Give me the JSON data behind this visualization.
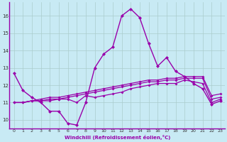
{
  "xlabel": "Windchill (Refroidissement éolien,°C)",
  "x": [
    0,
    1,
    2,
    3,
    4,
    5,
    6,
    7,
    8,
    9,
    10,
    11,
    12,
    13,
    14,
    15,
    16,
    17,
    18,
    19,
    20,
    21,
    22,
    23
  ],
  "line1": [
    12.7,
    11.7,
    11.3,
    11.0,
    10.5,
    10.5,
    9.8,
    9.7,
    11.0,
    13.0,
    13.8,
    14.2,
    16.0,
    16.4,
    15.9,
    14.4,
    13.1,
    13.6,
    12.8,
    12.5,
    12.1,
    11.8,
    10.9,
    11.1
  ],
  "line2": [
    11.0,
    11.0,
    11.1,
    11.1,
    11.1,
    11.2,
    11.2,
    11.0,
    11.4,
    11.3,
    11.4,
    11.5,
    11.6,
    11.8,
    11.9,
    12.0,
    12.1,
    12.1,
    12.1,
    12.3,
    12.2,
    12.1,
    11.0,
    11.2
  ],
  "line3": [
    11.0,
    11.0,
    11.1,
    11.1,
    11.2,
    11.2,
    11.3,
    11.4,
    11.5,
    11.6,
    11.7,
    11.8,
    11.9,
    12.0,
    12.1,
    12.2,
    12.2,
    12.3,
    12.3,
    12.4,
    12.4,
    12.4,
    11.2,
    11.3
  ],
  "line4": [
    11.0,
    11.0,
    11.1,
    11.2,
    11.3,
    11.3,
    11.4,
    11.5,
    11.6,
    11.7,
    11.8,
    11.9,
    12.0,
    12.1,
    12.2,
    12.3,
    12.3,
    12.4,
    12.4,
    12.5,
    12.5,
    12.5,
    11.4,
    11.5
  ],
  "line_color": "#9900aa",
  "bg_color": "#c8eaf4",
  "grid_color": "#aacccc",
  "border_color": "#9900aa",
  "ylim": [
    9.5,
    16.8
  ],
  "yticks": [
    10,
    11,
    12,
    13,
    14,
    15,
    16
  ],
  "xlim": [
    -0.5,
    23.5
  ]
}
